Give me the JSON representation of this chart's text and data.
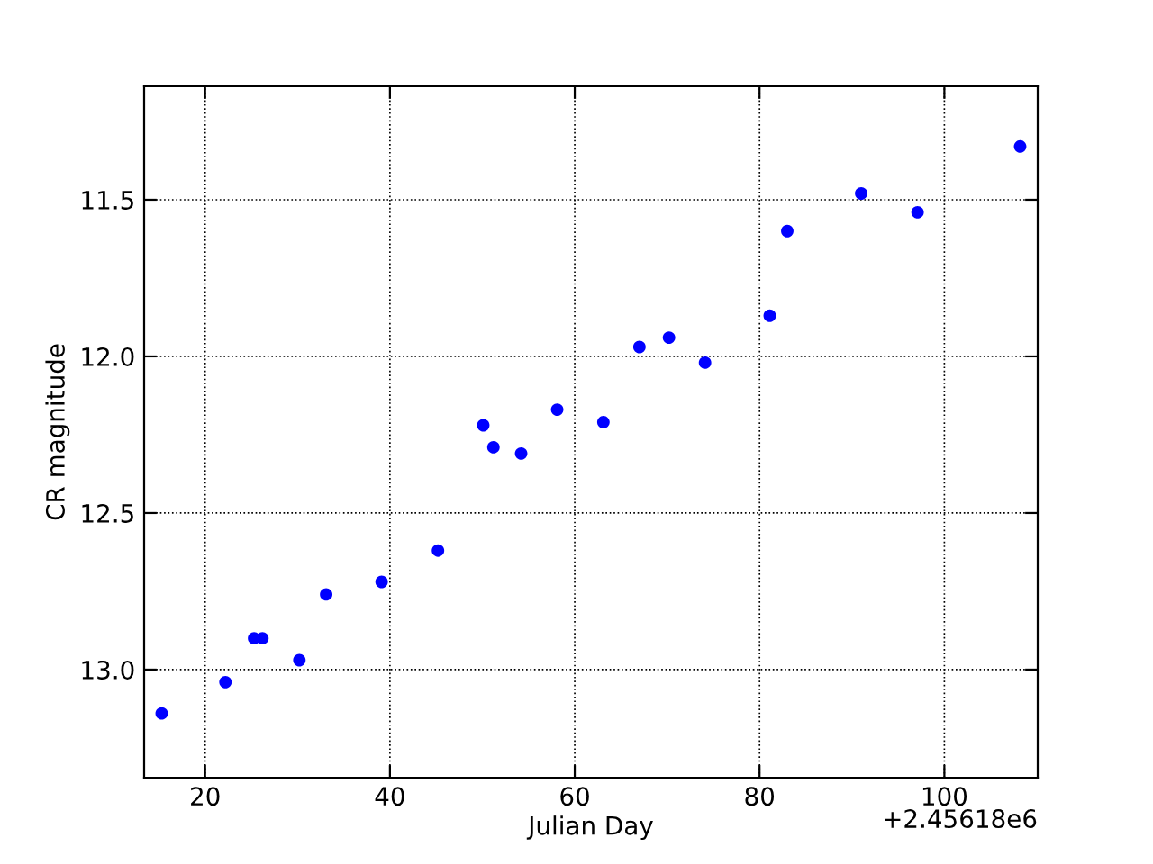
{
  "chart_data": {
    "type": "scatter",
    "xlabel": "Julian Day",
    "ylabel": "CR magnitude",
    "annotations": [
      "+2.45618e6"
    ],
    "x": [
      15.3,
      22.2,
      25.3,
      26.2,
      30.2,
      33.1,
      39.1,
      45.2,
      50.1,
      51.2,
      54.2,
      58.1,
      63.1,
      67.0,
      70.2,
      74.1,
      81.1,
      83.0,
      91.0,
      97.1,
      108.2
    ],
    "series": [
      {
        "color": "#0000ff",
        "values": [
          13.14,
          13.04,
          12.9,
          12.9,
          12.97,
          12.76,
          12.72,
          12.62,
          12.22,
          12.29,
          12.31,
          12.17,
          12.21,
          11.97,
          11.94,
          12.02,
          11.87,
          11.6,
          11.48,
          11.54,
          11.33
        ]
      }
    ],
    "xlim": [
      13.4,
      110.1
    ],
    "ylim": [
      13.345,
      11.138
    ],
    "xticks": [
      20,
      40,
      60,
      80,
      100
    ],
    "yticks": [
      {
        "value": 11.5,
        "label": "11.5"
      },
      {
        "value": 12.0,
        "label": "12.0"
      },
      {
        "value": 12.5,
        "label": "12.5"
      },
      {
        "value": 13.0,
        "label": "13.0"
      }
    ],
    "grid": true,
    "marker": "circle"
  }
}
